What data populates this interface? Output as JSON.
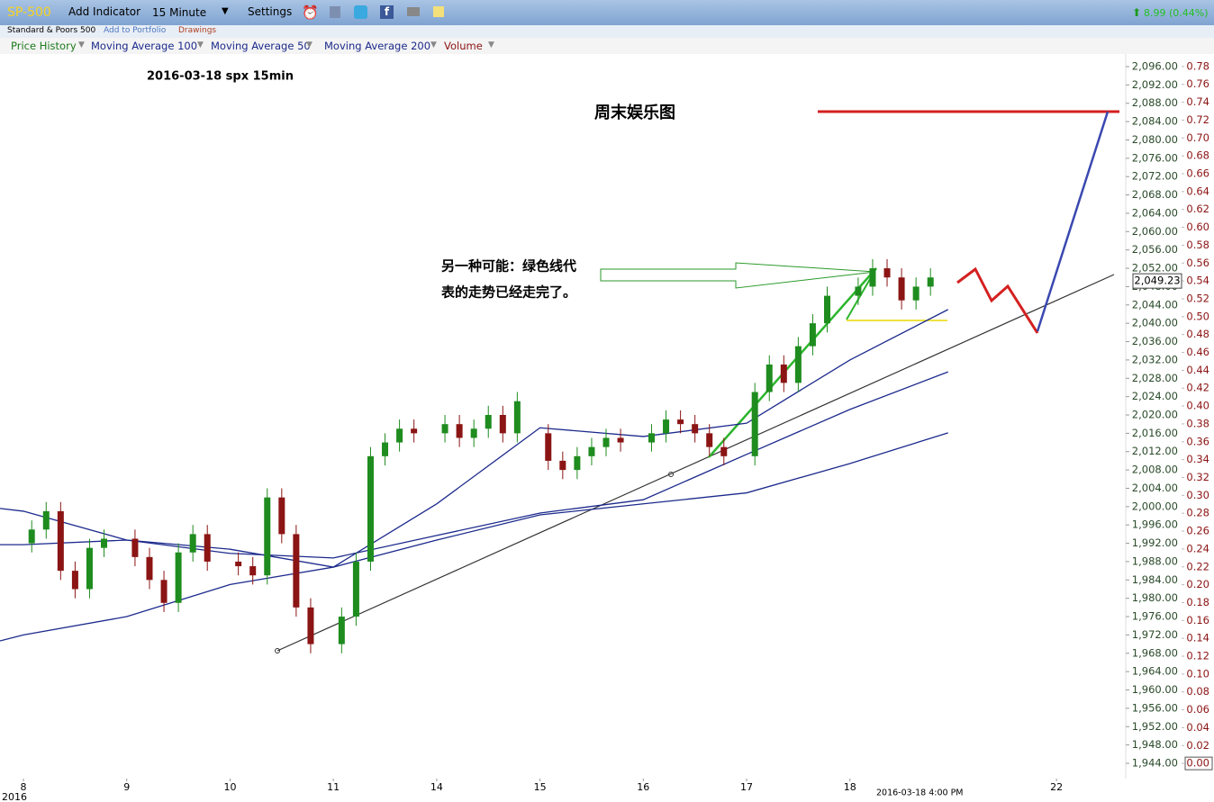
{
  "toolbar": {
    "symbol": "SP-500",
    "menu": [
      "Add Indicator",
      "15 Minute",
      "Settings"
    ],
    "change": "8.99 (0.44%)",
    "name": "Standard & Poors 500",
    "links": [
      "Add to Portfolio",
      "Drawings"
    ],
    "indicators_extra": "Volume"
  },
  "chart_data": {
    "type": "candlestick",
    "title": "2016-03-18 spx 15min",
    "annotations": [
      "周末娱乐图",
      "另一种可能：绿色线代",
      "表的走势已经走完了。"
    ],
    "x_note": "2016",
    "time_label": "2016-03-18 4:00 PM",
    "xlim": [
      -0.227,
      10.67
    ],
    "xticks": [
      {
        "value": 0,
        "label": "8"
      },
      {
        "value": 1,
        "label": "9"
      },
      {
        "value": 2,
        "label": "10"
      },
      {
        "value": 3,
        "label": "11"
      },
      {
        "value": 4,
        "label": "14"
      },
      {
        "value": 5,
        "label": "15"
      },
      {
        "value": 6,
        "label": "16"
      },
      {
        "value": 7,
        "label": "17"
      },
      {
        "value": 8,
        "label": "18"
      },
      {
        "value": 10,
        "label": "22"
      }
    ],
    "ylim": [
      1940.66,
      2098.75
    ],
    "yticks": [
      {
        "value": 1944,
        "label": "1,944.00"
      },
      {
        "value": 1948,
        "label": "1,948.00"
      },
      {
        "value": 1952,
        "label": "1,952.00"
      },
      {
        "value": 1956,
        "label": "1,956.00"
      },
      {
        "value": 1960,
        "label": "1,960.00"
      },
      {
        "value": 1964,
        "label": "1,964.00"
      },
      {
        "value": 1968,
        "label": "1,968.00"
      },
      {
        "value": 1972,
        "label": "1,972.00"
      },
      {
        "value": 1976,
        "label": "1,976.00"
      },
      {
        "value": 1980,
        "label": "1,980.00"
      },
      {
        "value": 1984,
        "label": "1,984.00"
      },
      {
        "value": 1988,
        "label": "1,988.00"
      },
      {
        "value": 1992,
        "label": "1,992.00"
      },
      {
        "value": 1996,
        "label": "1,996.00"
      },
      {
        "value": 2000,
        "label": "2,000.00"
      },
      {
        "value": 2004,
        "label": "2,004.00"
      },
      {
        "value": 2008,
        "label": "2,008.00"
      },
      {
        "value": 2012,
        "label": "2,012.00"
      },
      {
        "value": 2016,
        "label": "2,016.00"
      },
      {
        "value": 2020,
        "label": "2,020.00"
      },
      {
        "value": 2024,
        "label": "2,024.00"
      },
      {
        "value": 2028,
        "label": "2,028.00"
      },
      {
        "value": 2032,
        "label": "2,032.00"
      },
      {
        "value": 2036,
        "label": "2,036.00"
      },
      {
        "value": 2040,
        "label": "2,040.00"
      },
      {
        "value": 2044,
        "label": "2,044.00"
      },
      {
        "value": 2048,
        "label": "2,048.00"
      },
      {
        "value": 2052,
        "label": "2,052.00"
      },
      {
        "value": 2056,
        "label": "2,056.00"
      },
      {
        "value": 2060,
        "label": "2,060.00"
      },
      {
        "value": 2064,
        "label": "2,064.00"
      },
      {
        "value": 2068,
        "label": "2,068.00"
      },
      {
        "value": 2072,
        "label": "2,072.00"
      },
      {
        "value": 2076,
        "label": "2,076.00"
      },
      {
        "value": 2080,
        "label": "2,080.00"
      },
      {
        "value": 2084,
        "label": "2,084.00"
      },
      {
        "value": 2088,
        "label": "2,088.00"
      },
      {
        "value": 2092,
        "label": "2,092.00"
      },
      {
        "value": 2096,
        "label": "2,096.00"
      }
    ],
    "y2lim": [
      -0.017,
      0.794
    ],
    "y2ticks": [
      {
        "value": 0,
        "label": "0.00"
      },
      {
        "value": 0.02,
        "label": "0.02"
      },
      {
        "value": 0.04,
        "label": "0.04"
      },
      {
        "value": 0.06,
        "label": "0.06"
      },
      {
        "value": 0.08,
        "label": "0.08"
      },
      {
        "value": 0.1,
        "label": "0.10"
      },
      {
        "value": 0.12,
        "label": "0.12"
      },
      {
        "value": 0.14,
        "label": "0.14"
      },
      {
        "value": 0.16,
        "label": "0.16"
      },
      {
        "value": 0.18,
        "label": "0.18"
      },
      {
        "value": 0.2,
        "label": "0.20"
      },
      {
        "value": 0.22,
        "label": "0.22"
      },
      {
        "value": 0.24,
        "label": "0.24"
      },
      {
        "value": 0.26,
        "label": "0.26"
      },
      {
        "value": 0.28,
        "label": "0.28"
      },
      {
        "value": 0.3,
        "label": "0.30"
      },
      {
        "value": 0.32,
        "label": "0.32"
      },
      {
        "value": 0.34,
        "label": "0.34"
      },
      {
        "value": 0.36,
        "label": "0.36"
      },
      {
        "value": 0.38,
        "label": "0.38"
      },
      {
        "value": 0.4,
        "label": "0.40"
      },
      {
        "value": 0.42,
        "label": "0.42"
      },
      {
        "value": 0.44,
        "label": "0.44"
      },
      {
        "value": 0.46,
        "label": "0.46"
      },
      {
        "value": 0.48,
        "label": "0.48"
      },
      {
        "value": 0.5,
        "label": "0.50"
      },
      {
        "value": 0.52,
        "label": "0.52"
      },
      {
        "value": 0.54,
        "label": "0.54"
      },
      {
        "value": 0.56,
        "label": "0.56"
      },
      {
        "value": 0.58,
        "label": "0.58"
      },
      {
        "value": 0.6,
        "label": "0.60"
      },
      {
        "value": 0.62,
        "label": "0.62"
      },
      {
        "value": 0.64,
        "label": "0.64"
      },
      {
        "value": 0.66,
        "label": "0.66"
      },
      {
        "value": 0.68,
        "label": "0.68"
      },
      {
        "value": 0.7,
        "label": "0.70"
      },
      {
        "value": 0.72,
        "label": "0.72"
      },
      {
        "value": 0.74,
        "label": "0.74"
      },
      {
        "value": 0.76,
        "label": "0.76"
      },
      {
        "value": 0.78,
        "label": "0.78"
      }
    ],
    "last_price": {
      "value": 2049.23,
      "label": "2,049.23"
    },
    "candles": {
      "name": "Price History",
      "up_color": "#1e8c1e",
      "down_color": "#8b1414",
      "x": [
        0.08,
        0.22,
        0.36,
        0.5,
        0.64,
        0.78,
        1.08,
        1.22,
        1.36,
        1.5,
        1.64,
        1.78,
        2.08,
        2.22,
        2.36,
        2.5,
        2.64,
        2.78,
        3.08,
        3.22,
        3.36,
        3.5,
        3.64,
        3.78,
        4.08,
        4.22,
        4.36,
        4.5,
        4.64,
        4.78,
        5.08,
        5.22,
        5.36,
        5.5,
        5.64,
        5.78,
        6.08,
        6.22,
        6.36,
        6.5,
        6.64,
        6.78,
        7.08,
        7.22,
        7.36,
        7.5,
        7.64,
        7.78,
        8.08,
        8.22,
        8.36,
        8.5,
        8.64,
        8.78
      ],
      "open": [
        1992,
        1995,
        1999,
        1986,
        1982,
        1991,
        1993,
        1989,
        1984,
        1979,
        1990,
        1994,
        1988,
        1987,
        1985,
        2002,
        1994,
        1978,
        1970,
        1976,
        1988,
        2011,
        2014,
        2017,
        2016,
        2018,
        2015,
        2017,
        2020,
        2016,
        2016,
        2010,
        2008,
        2011,
        2013,
        2015,
        2014,
        2016,
        2019,
        2018,
        2016,
        2013,
        2011,
        2025,
        2031,
        2027,
        2035,
        2040,
        2046,
        2048,
        2052,
        2050,
        2045,
        2048
      ],
      "high": [
        1997,
        2001,
        2001,
        1988,
        1993,
        1995,
        1995,
        1991,
        1986,
        1992,
        1996,
        1996,
        1990,
        1989,
        2004,
        2004,
        1996,
        1980,
        1978,
        1990,
        2013,
        2016,
        2019,
        2019,
        2020,
        2020,
        2019,
        2022,
        2022,
        2025,
        2018,
        2012,
        2013,
        2015,
        2017,
        2017,
        2018,
        2021,
        2021,
        2020,
        2018,
        2015,
        2027,
        2033,
        2033,
        2037,
        2042,
        2048,
        2050,
        2054,
        2054,
        2052,
        2050,
        2052
      ],
      "low": [
        1990,
        1993,
        1984,
        1980,
        1980,
        1989,
        1987,
        1982,
        1977,
        1977,
        1988,
        1986,
        1985,
        1983,
        1983,
        1992,
        1976,
        1968,
        1968,
        1974,
        1986,
        2009,
        2012,
        2014,
        2014,
        2013,
        2013,
        2015,
        2014,
        2014,
        2008,
        2006,
        2006,
        2009,
        2011,
        2012,
        2012,
        2014,
        2016,
        2014,
        2011,
        2009,
        2009,
        2023,
        2025,
        2025,
        2033,
        2038,
        2044,
        2046,
        2048,
        2043,
        2043,
        2046
      ],
      "close": [
        1995,
        1999,
        1986,
        1982,
        1991,
        1993,
        1989,
        1984,
        1979,
        1990,
        1994,
        1988,
        1987,
        1985,
        2002,
        1994,
        1978,
        1970,
        1976,
        1988,
        2011,
        2014,
        2017,
        2016,
        2018,
        2015,
        2017,
        2020,
        2016,
        2023,
        2010,
        2008,
        2011,
        2013,
        2015,
        2014,
        2016,
        2019,
        2018,
        2016,
        2013,
        2011,
        2025,
        2031,
        2027,
        2035,
        2040,
        2046,
        2048,
        2052,
        2050,
        2045,
        2048,
        2050
      ]
    },
    "series": [
      {
        "name": "Moving Average 100",
        "color": "#1c2a8c",
        "x": [
          -0.227,
          0,
          1,
          2,
          3,
          4,
          5,
          6,
          7,
          8,
          8.95
        ],
        "values": [
          1991.7,
          1991.7,
          1992.7,
          1989.8,
          1988.8,
          1993.7,
          1998.6,
          2001.5,
          2011.4,
          2021.2,
          2029.4
        ]
      },
      {
        "name": "Moving Average 50",
        "color": "#1c2a8c",
        "x": [
          -0.227,
          0,
          1,
          2,
          3,
          4,
          5,
          6,
          7,
          8,
          8.95
        ],
        "values": [
          1999.6,
          1999,
          1992.7,
          1990.7,
          1986.8,
          2000.6,
          2017.2,
          2015.3,
          2018.2,
          2032,
          2043
        ]
      },
      {
        "name": "Moving Average 200",
        "color": "#1c2a8c",
        "x": [
          -0.227,
          0,
          1,
          2,
          3,
          4,
          5,
          6,
          7,
          8,
          8.95
        ],
        "values": [
          1970.7,
          1972,
          1976,
          1983,
          1986.8,
          1992.7,
          1998.2,
          2000.6,
          2003,
          2009.4,
          2016.1
        ]
      }
    ]
  }
}
